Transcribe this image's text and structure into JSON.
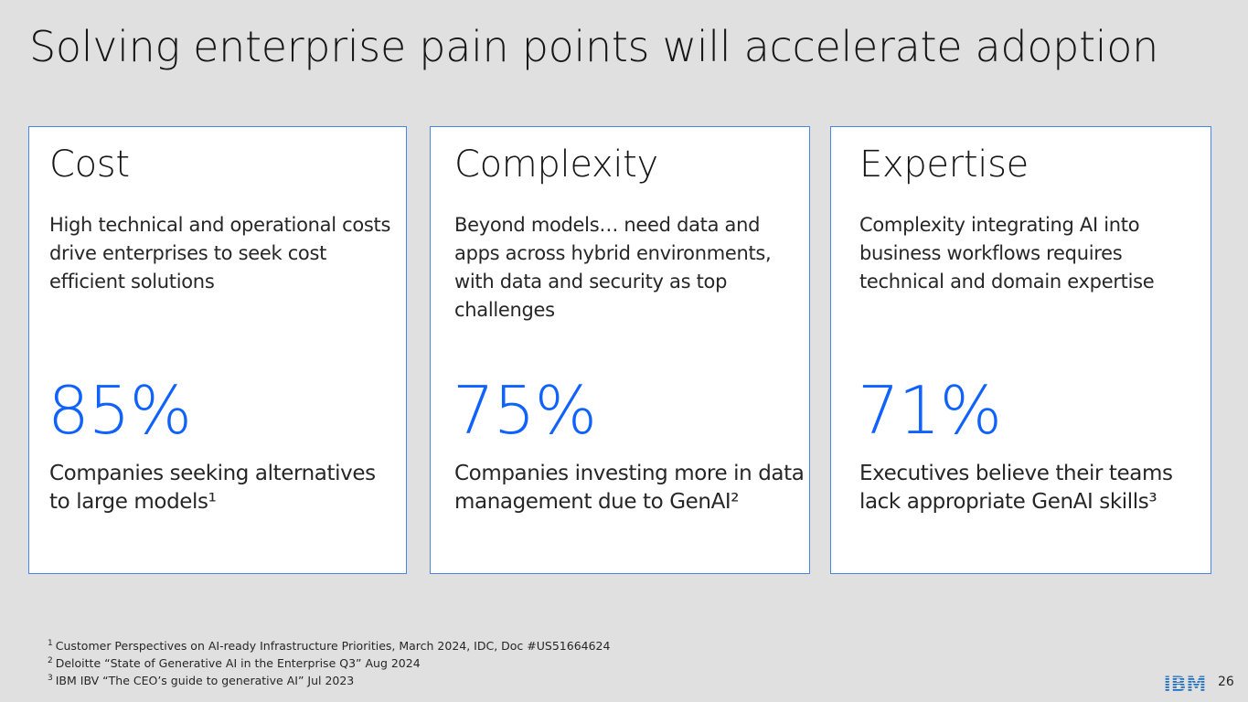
{
  "slide": {
    "title": "Solving enterprise pain points will accelerate adoption",
    "page_number": "26",
    "logo_text": "IBM"
  },
  "cards": [
    {
      "title": "Cost",
      "description": "High technical and operational costs drive enterprises to seek cost efficient solutions",
      "stat": "85%",
      "caption": "Companies seeking alternatives to large models¹"
    },
    {
      "title": "Complexity",
      "description": "Beyond models… need data and apps across hybrid environments, with data and security as top challenges",
      "stat": "75%",
      "caption": "Companies investing more in data management due to GenAI²"
    },
    {
      "title": "Expertise",
      "description": "Complexity integrating AI into business workflows requires technical and domain expertise",
      "stat": "71%",
      "caption": "Executives believe their teams lack appropriate GenAI skills³"
    }
  ],
  "footnotes": [
    {
      "marker": "1",
      "text": "Customer Perspectives on AI-ready Infrastructure Priorities, March 2024, IDC, Doc #US51664624"
    },
    {
      "marker": "2",
      "text": "Deloitte “State of Generative AI in the Enterprise Q3” Aug 2024"
    },
    {
      "marker": "3",
      "text": "IBM IBV  “The CEO’s guide to generative AI” Jul 2023"
    }
  ],
  "colors": {
    "background": "#e0e0e0",
    "card_border": "#4a86e8",
    "stat": "#0f62fe",
    "logo": "#1f70c1"
  }
}
